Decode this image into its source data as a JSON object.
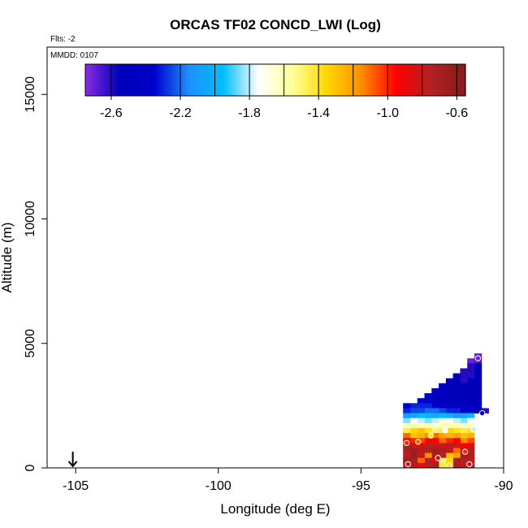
{
  "chart_data": {
    "type": "heatmap",
    "title": "ORCAS TF02 CONCD_LWI (Log)",
    "flights_note": "Flts: -2",
    "mmdd_note": "MMDD: 0107",
    "xlabel": "Longitude (deg E)",
    "ylabel": "Altitude (m)",
    "xlim": [
      -106,
      -90
    ],
    "ylim": [
      0,
      16900
    ],
    "xticks": [
      -105,
      -100,
      -95,
      -90
    ],
    "xtick_labels": [
      "-105",
      "-100",
      "-95",
      "-90"
    ],
    "yticks": [
      0,
      5000,
      10000,
      15000
    ],
    "ytick_labels": [
      "0",
      "5000",
      "10000",
      "15000"
    ],
    "colorbar": {
      "range": [
        -2.75,
        -0.55
      ],
      "ticks": [
        -2.6,
        -2.2,
        -1.8,
        -1.4,
        -1.0,
        -0.6
      ],
      "tick_labels": [
        "-2.6",
        "-2.2",
        "-1.8",
        "-1.4",
        "-1.0",
        "-0.6"
      ],
      "divisions": [
        -2.6,
        -2.4,
        -2.2,
        -2.0,
        -1.8,
        -1.6,
        -1.4,
        -1.2,
        -1.0,
        -0.8,
        -0.6
      ],
      "stops": [
        "#8a2be2",
        "#0000bb",
        "#0000cd",
        "#1e90ff",
        "#00bfff",
        "#ffffff",
        "#ffff99",
        "#ffd700",
        "#ff8c00",
        "#ff0000",
        "#b22222",
        "#8b1a1a"
      ]
    },
    "flight_start_marker": {
      "lon": -105.1,
      "alt": 0
    },
    "cell_size": {
      "dlon": 0.25,
      "dalt": 200
    },
    "cells": [
      {
        "lon": -90.9,
        "alt": 4400,
        "v": -2.7
      },
      {
        "lon": -90.9,
        "alt": 4200,
        "v": -2.65
      },
      {
        "lon": -91.15,
        "alt": 4200,
        "v": -2.7
      },
      {
        "lon": -90.9,
        "alt": 4000,
        "v": -2.55
      },
      {
        "lon": -91.15,
        "alt": 4000,
        "v": -2.6
      },
      {
        "lon": -90.9,
        "alt": 3800,
        "v": -2.55
      },
      {
        "lon": -91.15,
        "alt": 3800,
        "v": -2.6
      },
      {
        "lon": -91.4,
        "alt": 3800,
        "v": -2.6
      },
      {
        "lon": -90.9,
        "alt": 3600,
        "v": -2.55
      },
      {
        "lon": -91.15,
        "alt": 3600,
        "v": -2.6
      },
      {
        "lon": -91.4,
        "alt": 3600,
        "v": -2.6
      },
      {
        "lon": -91.65,
        "alt": 3600,
        "v": -2.55
      },
      {
        "lon": -90.9,
        "alt": 3400,
        "v": -2.55
      },
      {
        "lon": -91.15,
        "alt": 3400,
        "v": -2.55
      },
      {
        "lon": -91.4,
        "alt": 3400,
        "v": -2.6
      },
      {
        "lon": -91.65,
        "alt": 3400,
        "v": -2.55
      },
      {
        "lon": -91.9,
        "alt": 3400,
        "v": -2.55
      },
      {
        "lon": -90.9,
        "alt": 3200,
        "v": -2.55
      },
      {
        "lon": -91.15,
        "alt": 3200,
        "v": -2.55
      },
      {
        "lon": -91.4,
        "alt": 3200,
        "v": -2.55
      },
      {
        "lon": -91.65,
        "alt": 3200,
        "v": -2.55
      },
      {
        "lon": -91.9,
        "alt": 3200,
        "v": -2.55
      },
      {
        "lon": -92.15,
        "alt": 3200,
        "v": -2.5
      },
      {
        "lon": -90.9,
        "alt": 3000,
        "v": -2.55
      },
      {
        "lon": -91.15,
        "alt": 3000,
        "v": -2.55
      },
      {
        "lon": -91.4,
        "alt": 3000,
        "v": -2.55
      },
      {
        "lon": -91.65,
        "alt": 3000,
        "v": -2.55
      },
      {
        "lon": -91.9,
        "alt": 3000,
        "v": -2.55
      },
      {
        "lon": -92.15,
        "alt": 3000,
        "v": -2.5
      },
      {
        "lon": -92.4,
        "alt": 3000,
        "v": -2.5
      },
      {
        "lon": -90.9,
        "alt": 2800,
        "v": -2.55
      },
      {
        "lon": -91.15,
        "alt": 2800,
        "v": -2.55
      },
      {
        "lon": -91.4,
        "alt": 2800,
        "v": -2.55
      },
      {
        "lon": -91.65,
        "alt": 2800,
        "v": -2.55
      },
      {
        "lon": -91.9,
        "alt": 2800,
        "v": -2.55
      },
      {
        "lon": -92.15,
        "alt": 2800,
        "v": -2.5
      },
      {
        "lon": -92.4,
        "alt": 2800,
        "v": -2.5
      },
      {
        "lon": -92.65,
        "alt": 2800,
        "v": -2.4
      },
      {
        "lon": -90.9,
        "alt": 2600,
        "v": -2.55
      },
      {
        "lon": -91.15,
        "alt": 2600,
        "v": -2.55
      },
      {
        "lon": -91.4,
        "alt": 2600,
        "v": -2.55
      },
      {
        "lon": -91.65,
        "alt": 2600,
        "v": -2.55
      },
      {
        "lon": -91.9,
        "alt": 2600,
        "v": -2.5
      },
      {
        "lon": -92.15,
        "alt": 2600,
        "v": -2.5
      },
      {
        "lon": -92.4,
        "alt": 2600,
        "v": -2.45
      },
      {
        "lon": -92.65,
        "alt": 2600,
        "v": -2.4
      },
      {
        "lon": -92.9,
        "alt": 2600,
        "v": -2.35
      },
      {
        "lon": -90.9,
        "alt": 2400,
        "v": -2.55
      },
      {
        "lon": -91.15,
        "alt": 2400,
        "v": -2.5
      },
      {
        "lon": -91.4,
        "alt": 2400,
        "v": -2.5
      },
      {
        "lon": -91.65,
        "alt": 2400,
        "v": -2.5
      },
      {
        "lon": -91.9,
        "alt": 2400,
        "v": -2.45
      },
      {
        "lon": -92.15,
        "alt": 2400,
        "v": -2.4
      },
      {
        "lon": -92.4,
        "alt": 2400,
        "v": -2.35
      },
      {
        "lon": -92.65,
        "alt": 2400,
        "v": -2.3
      },
      {
        "lon": -92.9,
        "alt": 2400,
        "v": -2.3
      },
      {
        "lon": -93.15,
        "alt": 2400,
        "v": -2.3
      },
      {
        "lon": -93.4,
        "alt": 2400,
        "v": -2.35
      },
      {
        "lon": -90.65,
        "alt": 2200,
        "v": -2.6
      },
      {
        "lon": -90.9,
        "alt": 2200,
        "v": -2.5
      },
      {
        "lon": -91.15,
        "alt": 2200,
        "v": -2.4
      },
      {
        "lon": -91.4,
        "alt": 2200,
        "v": -2.35
      },
      {
        "lon": -91.65,
        "alt": 2200,
        "v": -2.3
      },
      {
        "lon": -91.9,
        "alt": 2200,
        "v": -2.3
      },
      {
        "lon": -92.15,
        "alt": 2200,
        "v": -2.25
      },
      {
        "lon": -92.4,
        "alt": 2200,
        "v": -2.2
      },
      {
        "lon": -92.65,
        "alt": 2200,
        "v": -2.2
      },
      {
        "lon": -92.9,
        "alt": 2200,
        "v": -2.25
      },
      {
        "lon": -93.15,
        "alt": 2200,
        "v": -2.25
      },
      {
        "lon": -93.4,
        "alt": 2200,
        "v": -2.3
      },
      {
        "lon": -91.15,
        "alt": 2000,
        "v": -1.95
      },
      {
        "lon": -91.4,
        "alt": 2000,
        "v": -2.05
      },
      {
        "lon": -91.65,
        "alt": 2000,
        "v": -2.1
      },
      {
        "lon": -91.9,
        "alt": 2000,
        "v": -2.0
      },
      {
        "lon": -92.15,
        "alt": 2000,
        "v": -1.95
      },
      {
        "lon": -92.4,
        "alt": 2000,
        "v": -2.05
      },
      {
        "lon": -92.65,
        "alt": 2000,
        "v": -2.0
      },
      {
        "lon": -92.9,
        "alt": 2000,
        "v": -1.95
      },
      {
        "lon": -93.15,
        "alt": 2000,
        "v": -2.05
      },
      {
        "lon": -93.4,
        "alt": 2000,
        "v": -2.1
      },
      {
        "lon": -91.15,
        "alt": 1800,
        "v": -1.75
      },
      {
        "lon": -91.4,
        "alt": 1800,
        "v": -1.85
      },
      {
        "lon": -91.65,
        "alt": 1800,
        "v": -1.8
      },
      {
        "lon": -91.9,
        "alt": 1800,
        "v": -1.7
      },
      {
        "lon": -92.15,
        "alt": 1800,
        "v": -1.7
      },
      {
        "lon": -92.4,
        "alt": 1800,
        "v": -1.8
      },
      {
        "lon": -92.65,
        "alt": 1800,
        "v": -1.85
      },
      {
        "lon": -92.9,
        "alt": 1800,
        "v": -1.8
      },
      {
        "lon": -93.15,
        "alt": 1800,
        "v": -1.75
      },
      {
        "lon": -93.4,
        "alt": 1800,
        "v": -1.85
      },
      {
        "lon": -91.15,
        "alt": 1600,
        "v": -1.6
      },
      {
        "lon": -91.4,
        "alt": 1600,
        "v": -1.65
      },
      {
        "lon": -91.65,
        "alt": 1600,
        "v": -1.55
      },
      {
        "lon": -91.9,
        "alt": 1600,
        "v": -1.6
      },
      {
        "lon": -92.15,
        "alt": 1600,
        "v": -1.6
      },
      {
        "lon": -92.4,
        "alt": 1600,
        "v": -1.65
      },
      {
        "lon": -92.65,
        "alt": 1600,
        "v": -1.55
      },
      {
        "lon": -92.9,
        "alt": 1600,
        "v": -1.6
      },
      {
        "lon": -93.15,
        "alt": 1600,
        "v": -1.55
      },
      {
        "lon": -93.4,
        "alt": 1600,
        "v": -1.6
      },
      {
        "lon": -91.15,
        "alt": 1400,
        "v": -1.4
      },
      {
        "lon": -91.4,
        "alt": 1400,
        "v": -1.45
      },
      {
        "lon": -91.65,
        "alt": 1400,
        "v": -1.4
      },
      {
        "lon": -91.9,
        "alt": 1400,
        "v": -1.35
      },
      {
        "lon": -92.15,
        "alt": 1400,
        "v": -1.45
      },
      {
        "lon": -92.4,
        "alt": 1400,
        "v": -1.5
      },
      {
        "lon": -92.65,
        "alt": 1400,
        "v": -1.4
      },
      {
        "lon": -92.9,
        "alt": 1400,
        "v": -1.3
      },
      {
        "lon": -93.15,
        "alt": 1400,
        "v": -1.35
      },
      {
        "lon": -93.4,
        "alt": 1400,
        "v": -1.45
      },
      {
        "lon": -91.15,
        "alt": 1200,
        "v": -1.25
      },
      {
        "lon": -91.4,
        "alt": 1200,
        "v": -1.3
      },
      {
        "lon": -91.65,
        "alt": 1200,
        "v": -1.2
      },
      {
        "lon": -91.9,
        "alt": 1200,
        "v": -1.25
      },
      {
        "lon": -92.15,
        "alt": 1200,
        "v": -1.2
      },
      {
        "lon": -92.4,
        "alt": 1200,
        "v": -1.1
      },
      {
        "lon": -92.65,
        "alt": 1200,
        "v": -1.15
      },
      {
        "lon": -92.9,
        "alt": 1200,
        "v": -1.25
      },
      {
        "lon": -93.15,
        "alt": 1200,
        "v": -1.3
      },
      {
        "lon": -93.4,
        "alt": 1200,
        "v": -1.1
      },
      {
        "lon": -91.15,
        "alt": 1000,
        "v": -1.05
      },
      {
        "lon": -91.4,
        "alt": 1000,
        "v": -1.15
      },
      {
        "lon": -91.65,
        "alt": 1000,
        "v": -0.95
      },
      {
        "lon": -91.9,
        "alt": 1000,
        "v": -1.0
      },
      {
        "lon": -92.15,
        "alt": 1000,
        "v": -1.1
      },
      {
        "lon": -92.4,
        "alt": 1000,
        "v": -0.95
      },
      {
        "lon": -92.65,
        "alt": 1000,
        "v": -0.9
      },
      {
        "lon": -92.9,
        "alt": 1000,
        "v": -1.05
      },
      {
        "lon": -93.15,
        "alt": 1000,
        "v": -1.0
      },
      {
        "lon": -93.4,
        "alt": 1000,
        "v": -0.85
      },
      {
        "lon": -91.15,
        "alt": 800,
        "v": -0.85
      },
      {
        "lon": -91.4,
        "alt": 800,
        "v": -0.95
      },
      {
        "lon": -91.65,
        "alt": 800,
        "v": -0.8
      },
      {
        "lon": -91.9,
        "alt": 800,
        "v": -0.75
      },
      {
        "lon": -92.15,
        "alt": 800,
        "v": -0.85
      },
      {
        "lon": -92.4,
        "alt": 800,
        "v": -0.8
      },
      {
        "lon": -92.65,
        "alt": 800,
        "v": -0.75
      },
      {
        "lon": -92.9,
        "alt": 800,
        "v": -0.9
      },
      {
        "lon": -93.15,
        "alt": 800,
        "v": -0.8
      },
      {
        "lon": -93.4,
        "alt": 800,
        "v": -0.7
      },
      {
        "lon": -91.15,
        "alt": 600,
        "v": -0.75
      },
      {
        "lon": -91.4,
        "alt": 600,
        "v": -0.7
      },
      {
        "lon": -91.65,
        "alt": 600,
        "v": -1.1
      },
      {
        "lon": -91.9,
        "alt": 600,
        "v": -0.8
      },
      {
        "lon": -92.15,
        "alt": 600,
        "v": -0.7
      },
      {
        "lon": -92.4,
        "alt": 600,
        "v": -0.65
      },
      {
        "lon": -92.65,
        "alt": 600,
        "v": -0.75
      },
      {
        "lon": -92.9,
        "alt": 600,
        "v": -0.7
      },
      {
        "lon": -93.15,
        "alt": 600,
        "v": -0.65
      },
      {
        "lon": -93.4,
        "alt": 600,
        "v": -0.7
      },
      {
        "lon": -91.15,
        "alt": 400,
        "v": -0.7
      },
      {
        "lon": -91.4,
        "alt": 400,
        "v": -0.65
      },
      {
        "lon": -91.65,
        "alt": 400,
        "v": -1.2
      },
      {
        "lon": -91.9,
        "alt": 400,
        "v": -1.3
      },
      {
        "lon": -92.15,
        "alt": 400,
        "v": -0.75
      },
      {
        "lon": -92.4,
        "alt": 400,
        "v": -0.7
      },
      {
        "lon": -92.65,
        "alt": 400,
        "v": -1.15
      },
      {
        "lon": -92.9,
        "alt": 400,
        "v": -0.8
      },
      {
        "lon": -93.15,
        "alt": 400,
        "v": -0.65
      },
      {
        "lon": -93.4,
        "alt": 400,
        "v": -0.75
      },
      {
        "lon": -91.15,
        "alt": 200,
        "v": -0.8
      },
      {
        "lon": -91.4,
        "alt": 200,
        "v": -0.75
      },
      {
        "lon": -91.65,
        "alt": 200,
        "v": -0.7
      },
      {
        "lon": -91.9,
        "alt": 200,
        "v": -1.35
      },
      {
        "lon": -92.15,
        "alt": 200,
        "v": -1.5
      },
      {
        "lon": -92.4,
        "alt": 200,
        "v": -0.9
      },
      {
        "lon": -92.65,
        "alt": 200,
        "v": -0.75
      },
      {
        "lon": -92.9,
        "alt": 200,
        "v": -1.1
      },
      {
        "lon": -93.15,
        "alt": 200,
        "v": -0.7
      },
      {
        "lon": -93.4,
        "alt": 200,
        "v": -0.65
      },
      {
        "lon": -91.15,
        "alt": 0,
        "v": -0.75
      },
      {
        "lon": -91.4,
        "alt": 0,
        "v": -0.8
      },
      {
        "lon": -91.65,
        "alt": 0,
        "v": -0.7
      },
      {
        "lon": -91.9,
        "alt": 0,
        "v": -1.3
      },
      {
        "lon": -92.15,
        "alt": 0,
        "v": -1.45
      },
      {
        "lon": -92.4,
        "alt": 0,
        "v": -0.7
      },
      {
        "lon": -92.65,
        "alt": 0,
        "v": -0.75
      },
      {
        "lon": -92.9,
        "alt": 0,
        "v": -0.9
      },
      {
        "lon": -93.15,
        "alt": 0,
        "v": -0.7
      },
      {
        "lon": -93.4,
        "alt": 0,
        "v": -0.75
      }
    ],
    "points": [
      {
        "lon": -90.9,
        "alt": 4400,
        "v": -2.7
      },
      {
        "lon": -90.75,
        "alt": 2200,
        "v": -2.5
      },
      {
        "lon": -91.05,
        "alt": 1550,
        "v": -1.8
      },
      {
        "lon": -91.35,
        "alt": 650,
        "v": -1.0
      },
      {
        "lon": -91.2,
        "alt": 150,
        "v": -0.8
      },
      {
        "lon": -92.05,
        "alt": 1500,
        "v": -1.7
      },
      {
        "lon": -92.55,
        "alt": 1300,
        "v": -1.4
      },
      {
        "lon": -93.0,
        "alt": 1050,
        "v": -1.1
      },
      {
        "lon": -93.4,
        "alt": 1000,
        "v": -1.0
      },
      {
        "lon": -92.3,
        "alt": 400,
        "v": -0.9
      },
      {
        "lon": -91.9,
        "alt": 100,
        "v": -1.4
      },
      {
        "lon": -93.35,
        "alt": 150,
        "v": -0.8
      }
    ]
  }
}
